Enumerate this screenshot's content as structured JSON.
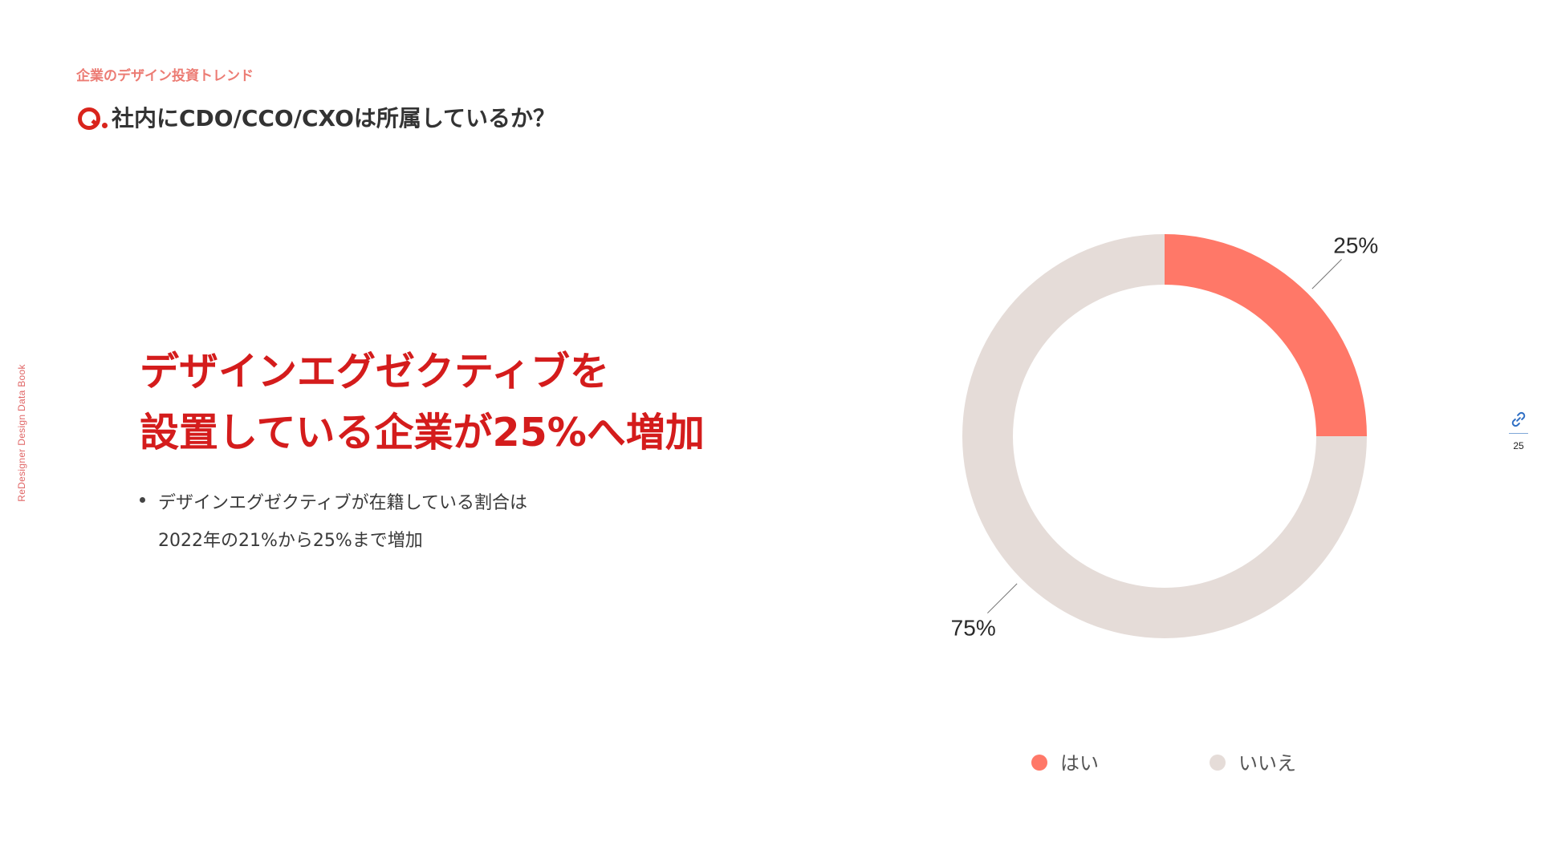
{
  "side_label": "ReDesigner Design Data Book",
  "category": "企業のデザイン投資トレンド",
  "question": "社内にCDO/CCO/CXOは所属しているか？",
  "headline": {
    "line1": "デザインエグゼクティブを",
    "line2": "設置している企業が25%へ増加"
  },
  "bullet": {
    "line1": "デザインエグゼクティブが在籍している割合は",
    "line2": "2022年の21%から25%まで増加"
  },
  "page_number": "25",
  "colors": {
    "accent": "#d41c1c",
    "category": "#ec7c74",
    "yes": "#ff7868",
    "no": "#e5dcd8"
  },
  "chart_data": {
    "type": "pie",
    "variant": "donut",
    "title": "",
    "categories": [
      "はい",
      "いいえ"
    ],
    "values": [
      25,
      75
    ],
    "value_labels": [
      "25%",
      "75%"
    ],
    "colors": [
      "#ff7868",
      "#e5dcd8"
    ],
    "legend_position": "bottom",
    "start": "top",
    "direction": "clockwise"
  }
}
